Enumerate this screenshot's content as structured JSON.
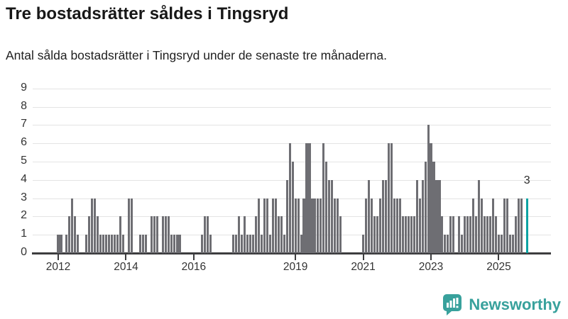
{
  "header": {
    "title": "Tre bostadsrätter såldes i Tingsryd",
    "subtitle": "Antal sålda bostadsrätter i Tingsryd under de senaste tre månaderna."
  },
  "chart_data": {
    "type": "bar",
    "title": "Tre bostadsrätter såldes i Tingsryd",
    "subtitle": "Antal sålda bostadsrätter i Tingsryd under de senaste tre månaderna.",
    "frequency": "monthly",
    "x_start_month": "2012-01",
    "x_end_month": "2025-11",
    "xlabel": "",
    "ylabel": "",
    "ylim": [
      0,
      9
    ],
    "yticks": [
      0,
      1,
      2,
      3,
      4,
      5,
      6,
      7,
      8,
      9
    ],
    "xticks": [
      2012,
      2014,
      2016,
      2019,
      2021,
      2023,
      2025
    ],
    "grid": "horizontal",
    "legend": "none",
    "bar_color": "#6e6e73",
    "highlight_color": "#0ca3a3",
    "highlight_index": 166,
    "highlight_label": "3",
    "values_by_year": {
      "2012": [
        1,
        1,
        0,
        1,
        2,
        3,
        2,
        1,
        0,
        0,
        1,
        2
      ],
      "2013": [
        3,
        3,
        2,
        1,
        1,
        1,
        1,
        1,
        1,
        1,
        2,
        1
      ],
      "2014": [
        0,
        3,
        3,
        0,
        0,
        1,
        1,
        1,
        0,
        2,
        2,
        2
      ],
      "2015": [
        0,
        2,
        2,
        2,
        1,
        1,
        1,
        1,
        0,
        0,
        0,
        0
      ],
      "2016": [
        0,
        0,
        0,
        1,
        2,
        2,
        1,
        0,
        0,
        0,
        0,
        0
      ],
      "2017": [
        0,
        0,
        1,
        1,
        2,
        1,
        2,
        1,
        1,
        1,
        2,
        3
      ],
      "2018": [
        1,
        3,
        3,
        1,
        3,
        3,
        2,
        2,
        1,
        4,
        6,
        5
      ],
      "2019": [
        3,
        3,
        1,
        3,
        6,
        6,
        3,
        3,
        3,
        3,
        6,
        5
      ],
      "2020": [
        4,
        4,
        3,
        3,
        2,
        0,
        0,
        0,
        0,
        0,
        0,
        0
      ],
      "2021": [
        1,
        3,
        4,
        3,
        2,
        2,
        3,
        4,
        4,
        6,
        6,
        3
      ],
      "2022": [
        3,
        3,
        2,
        2,
        2,
        2,
        2,
        4,
        3,
        4,
        5,
        7
      ],
      "2023": [
        6,
        5,
        4,
        4,
        2,
        1,
        1,
        2,
        2,
        0,
        2,
        1
      ],
      "2024": [
        2,
        2,
        2,
        3,
        2,
        4,
        3,
        2,
        2,
        2,
        3,
        2
      ],
      "2025": [
        1,
        1,
        3,
        3,
        1,
        1,
        2,
        3,
        3,
        0,
        3
      ]
    }
  },
  "footer": {
    "logo_text": "Newsworthy",
    "logo_color": "#38a19c"
  }
}
